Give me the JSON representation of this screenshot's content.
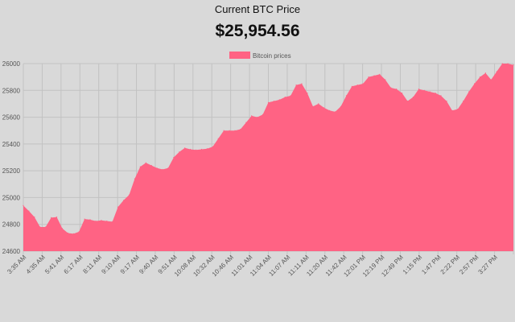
{
  "header": {
    "title": "Current BTC Price",
    "price": "$25,954.56"
  },
  "colors": {
    "series_fill": "#ff6384",
    "legend_box": "#ff6384",
    "grid": "#c2c2c2",
    "text": "#555555",
    "background": "#d9d9d9"
  },
  "chart_data": {
    "type": "area",
    "legend": [
      "Bitcoin prices"
    ],
    "legend_position": "top",
    "grid": true,
    "xlabel": "",
    "ylabel": "",
    "ylim": [
      24600,
      26000
    ],
    "yticks": [
      24600,
      24800,
      25000,
      25200,
      25400,
      25600,
      25800,
      26000
    ],
    "xticks": [
      "3:35 AM",
      "4:35 AM",
      "5:41 AM",
      "6:17 AM",
      "8:11 AM",
      "9:10 AM",
      "9:17 AM",
      "9:40 AM",
      "9:51 AM",
      "10:08 AM",
      "10:32 AM",
      "10:46 AM",
      "11:01 AM",
      "11:04 AM",
      "11:07 AM",
      "11:11 AM",
      "11:20 AM",
      "11:42 AM",
      "12:01 PM",
      "12:19 PM",
      "12:49 PM",
      "1:15 PM",
      "1:47 PM",
      "2:22 PM",
      "2:57 PM",
      "3:27 PM"
    ],
    "series": [
      {
        "name": "Bitcoin prices",
        "values": [
          24940,
          24900,
          24855,
          24780,
          24780,
          24850,
          24855,
          24770,
          24735,
          24730,
          24745,
          24840,
          24835,
          24825,
          24830,
          24825,
          24820,
          24930,
          24980,
          25020,
          25140,
          25230,
          25260,
          25240,
          25220,
          25210,
          25220,
          25300,
          25340,
          25370,
          25360,
          25355,
          25360,
          25365,
          25380,
          25440,
          25500,
          25500,
          25500,
          25510,
          25560,
          25610,
          25600,
          25620,
          25710,
          25720,
          25730,
          25750,
          25760,
          25840,
          25850,
          25780,
          25680,
          25700,
          25670,
          25650,
          25640,
          25680,
          25760,
          25830,
          25840,
          25850,
          25900,
          25910,
          25920,
          25880,
          25820,
          25810,
          25780,
          25720,
          25750,
          25810,
          25800,
          25790,
          25780,
          25760,
          25720,
          25650,
          25660,
          25720,
          25790,
          25850,
          25900,
          25930,
          25880,
          25940,
          26000,
          26000,
          25990
        ]
      }
    ]
  }
}
